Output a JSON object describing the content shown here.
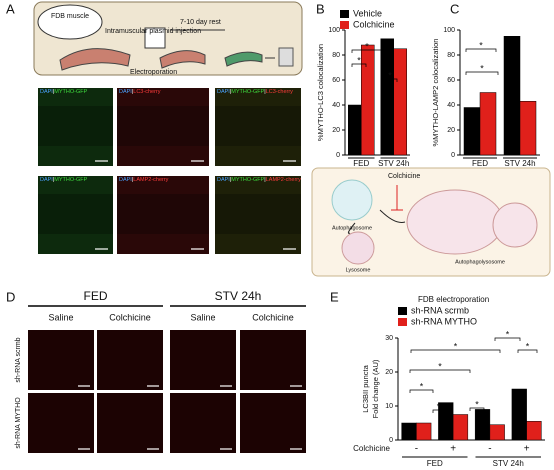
{
  "panel_a": {
    "letter": "A",
    "muscle": "FDB muscle",
    "injection": "Intramuscular plasmid injection",
    "rest": "7-10 day rest",
    "electroporation": "Electroporation",
    "image_labels": [
      [
        {
          "text": "DAPI",
          "color": "#4aa3ff"
        },
        {
          "text": "|",
          "color": "#ffffff"
        },
        {
          "text": "MYTHO-GFP",
          "color": "#3ddc3d"
        }
      ],
      [
        {
          "text": "DAPI",
          "color": "#4aa3ff"
        },
        {
          "text": "|",
          "color": "#ffffff"
        },
        {
          "text": "LC3-cherry",
          "color": "#ff3b3b"
        }
      ],
      [
        {
          "text": "DAPI",
          "color": "#4aa3ff"
        },
        {
          "text": "|",
          "color": "#ffffff"
        },
        {
          "text": "MYTHO-GFP",
          "color": "#3ddc3d"
        },
        {
          "text": "|",
          "color": "#ffffff"
        },
        {
          "text": "LC3-cherry",
          "color": "#ff3b3b"
        }
      ],
      [
        {
          "text": "DAPI",
          "color": "#4aa3ff"
        },
        {
          "text": "|",
          "color": "#ffffff"
        },
        {
          "text": "MYTHO-GFP",
          "color": "#3ddc3d"
        }
      ],
      [
        {
          "text": "DAPI",
          "color": "#4aa3ff"
        },
        {
          "text": "|",
          "color": "#ffffff"
        },
        {
          "text": "LAMP2-cherry",
          "color": "#ff3b3b"
        }
      ],
      [
        {
          "text": "DAPI",
          "color": "#4aa3ff"
        },
        {
          "text": "|",
          "color": "#ffffff"
        },
        {
          "text": "MYTHO-GFP",
          "color": "#3ddc3d"
        },
        {
          "text": "|",
          "color": "#ffffff"
        },
        {
          "text": "LAMP2-cherry",
          "color": "#ff3b3b"
        }
      ]
    ]
  },
  "panel_diagram": {
    "colchicine": "Colchicine",
    "autophagosome": "Autophagosome",
    "lysosome": "Lysosome",
    "autophagolysosome": "Autophagolysosome"
  },
  "panel_d": {
    "letter": "D",
    "conditions": [
      "FED",
      "STV 24h"
    ],
    "treatments": [
      "Saline",
      "Colchicine",
      "Saline",
      "Colchicine"
    ],
    "rows": [
      "sh-RNA scrmb",
      "sh-RNA MYTHO"
    ],
    "row_colors": [
      "#000000",
      "#e0201b"
    ]
  },
  "chart_data": [
    {
      "type": "bar",
      "panel": "B",
      "ylabel": "%MYTHO-LC3 colocalization",
      "categories": [
        "FED",
        "STV 24h"
      ],
      "series": [
        {
          "name": "Vehicle",
          "color": "#000000",
          "values": [
            40,
            93
          ]
        },
        {
          "name": "Colchicine",
          "color": "#e0201b",
          "values": [
            88,
            85
          ]
        }
      ],
      "ylim": [
        0,
        100
      ],
      "yticks": [
        0,
        20,
        40,
        60,
        80,
        100
      ],
      "legend": true,
      "significance": [
        "*",
        "*",
        "*"
      ]
    },
    {
      "type": "bar",
      "panel": "C",
      "ylabel": "%MYTHO-LAMP2 colocalization",
      "categories": [
        "FED",
        "STV 24h"
      ],
      "series": [
        {
          "name": "Vehicle",
          "color": "#000000",
          "values": [
            38,
            95
          ]
        },
        {
          "name": "Colchicine",
          "color": "#e0201b",
          "values": [
            50,
            43
          ]
        }
      ],
      "ylim": [
        0,
        100
      ],
      "yticks": [
        0,
        20,
        40,
        60,
        80,
        100
      ],
      "legend": false,
      "significance": [
        "*",
        "*"
      ]
    },
    {
      "type": "bar",
      "panel": "E",
      "ylabel": [
        "LC3BII puncta",
        "Fold change (AU)"
      ],
      "legend_title": "FDB electroporation",
      "categories": [
        "-",
        "+",
        "-",
        "+"
      ],
      "groups": [
        "FED",
        "STV 24h"
      ],
      "x_row_label": "Colchicine",
      "series": [
        {
          "name": "sh-RNA scrmb",
          "color": "#000000",
          "values": [
            5,
            11,
            9,
            15
          ]
        },
        {
          "name": "sh-RNA MYTHO",
          "color": "#e0201b",
          "values": [
            5,
            7.5,
            4.5,
            5.5
          ]
        }
      ],
      "ylim": [
        0,
        30
      ],
      "yticks": [
        0,
        10,
        20,
        30
      ],
      "legend": true,
      "significance": [
        "*",
        "*",
        "*",
        "*",
        "*",
        "*",
        "*"
      ]
    }
  ]
}
